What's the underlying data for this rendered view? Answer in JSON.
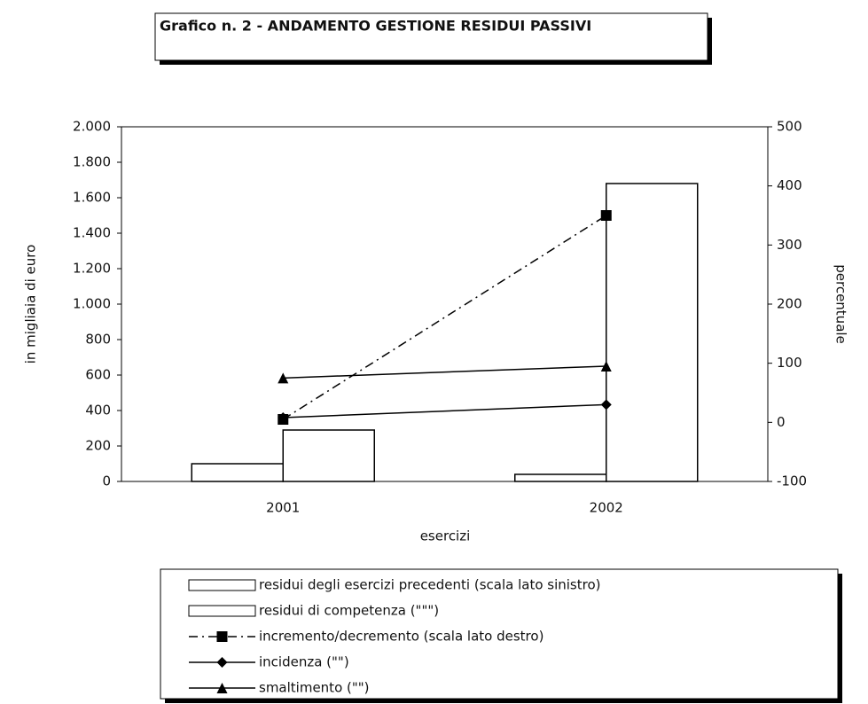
{
  "chart_data": {
    "type": "bar",
    "title": "Grafico n. 2 - ANDAMENTO GESTIONE RESIDUI PASSIVI",
    "x_label": "esercizi",
    "y_label": "in migliaia di euro",
    "y2_label": "percentuale",
    "categories": [
      "2001",
      "2002"
    ],
    "ylim": [
      0,
      2000
    ],
    "yticks": [
      0,
      200,
      400,
      600,
      800,
      {
        "value": 1000,
        "label": "1.000"
      },
      {
        "value": 1200,
        "label": "1.200"
      },
      {
        "value": 1400,
        "label": "1.400"
      },
      {
        "value": 1600,
        "label": "1.600"
      },
      {
        "value": 1800,
        "label": "1.800"
      },
      {
        "value": 2000,
        "label": "2.000"
      }
    ],
    "y2lim": [
      -100,
      500
    ],
    "y2ticks": [
      -100,
      0,
      100,
      200,
      300,
      400,
      500
    ],
    "series": [
      {
        "name": "residui degli esercizi precedenti (scala lato sinistro)",
        "type": "bar",
        "color": "#ffffff",
        "values": [
          100,
          40
        ]
      },
      {
        "name": "residui di competenza (\"\"\")",
        "type": "bar",
        "color": "#ffffff",
        "values": [
          290,
          1680
        ]
      },
      {
        "name": "incremento/decremento (scala lato destro)",
        "type": "line",
        "axis": "y2",
        "color": "#000000",
        "marker": "square",
        "dash": "dashdot",
        "values": [
          5,
          350
        ]
      },
      {
        "name": "incidenza (\"\")",
        "type": "line",
        "axis": "y2",
        "color": "#000000",
        "marker": "diamond",
        "dash": "solid",
        "values": [
          8,
          30
        ]
      },
      {
        "name": "smaltimento (\"\")",
        "type": "line",
        "axis": "y2",
        "color": "#000000",
        "marker": "triangle",
        "dash": "solid",
        "values": [
          75,
          95
        ]
      }
    ]
  }
}
